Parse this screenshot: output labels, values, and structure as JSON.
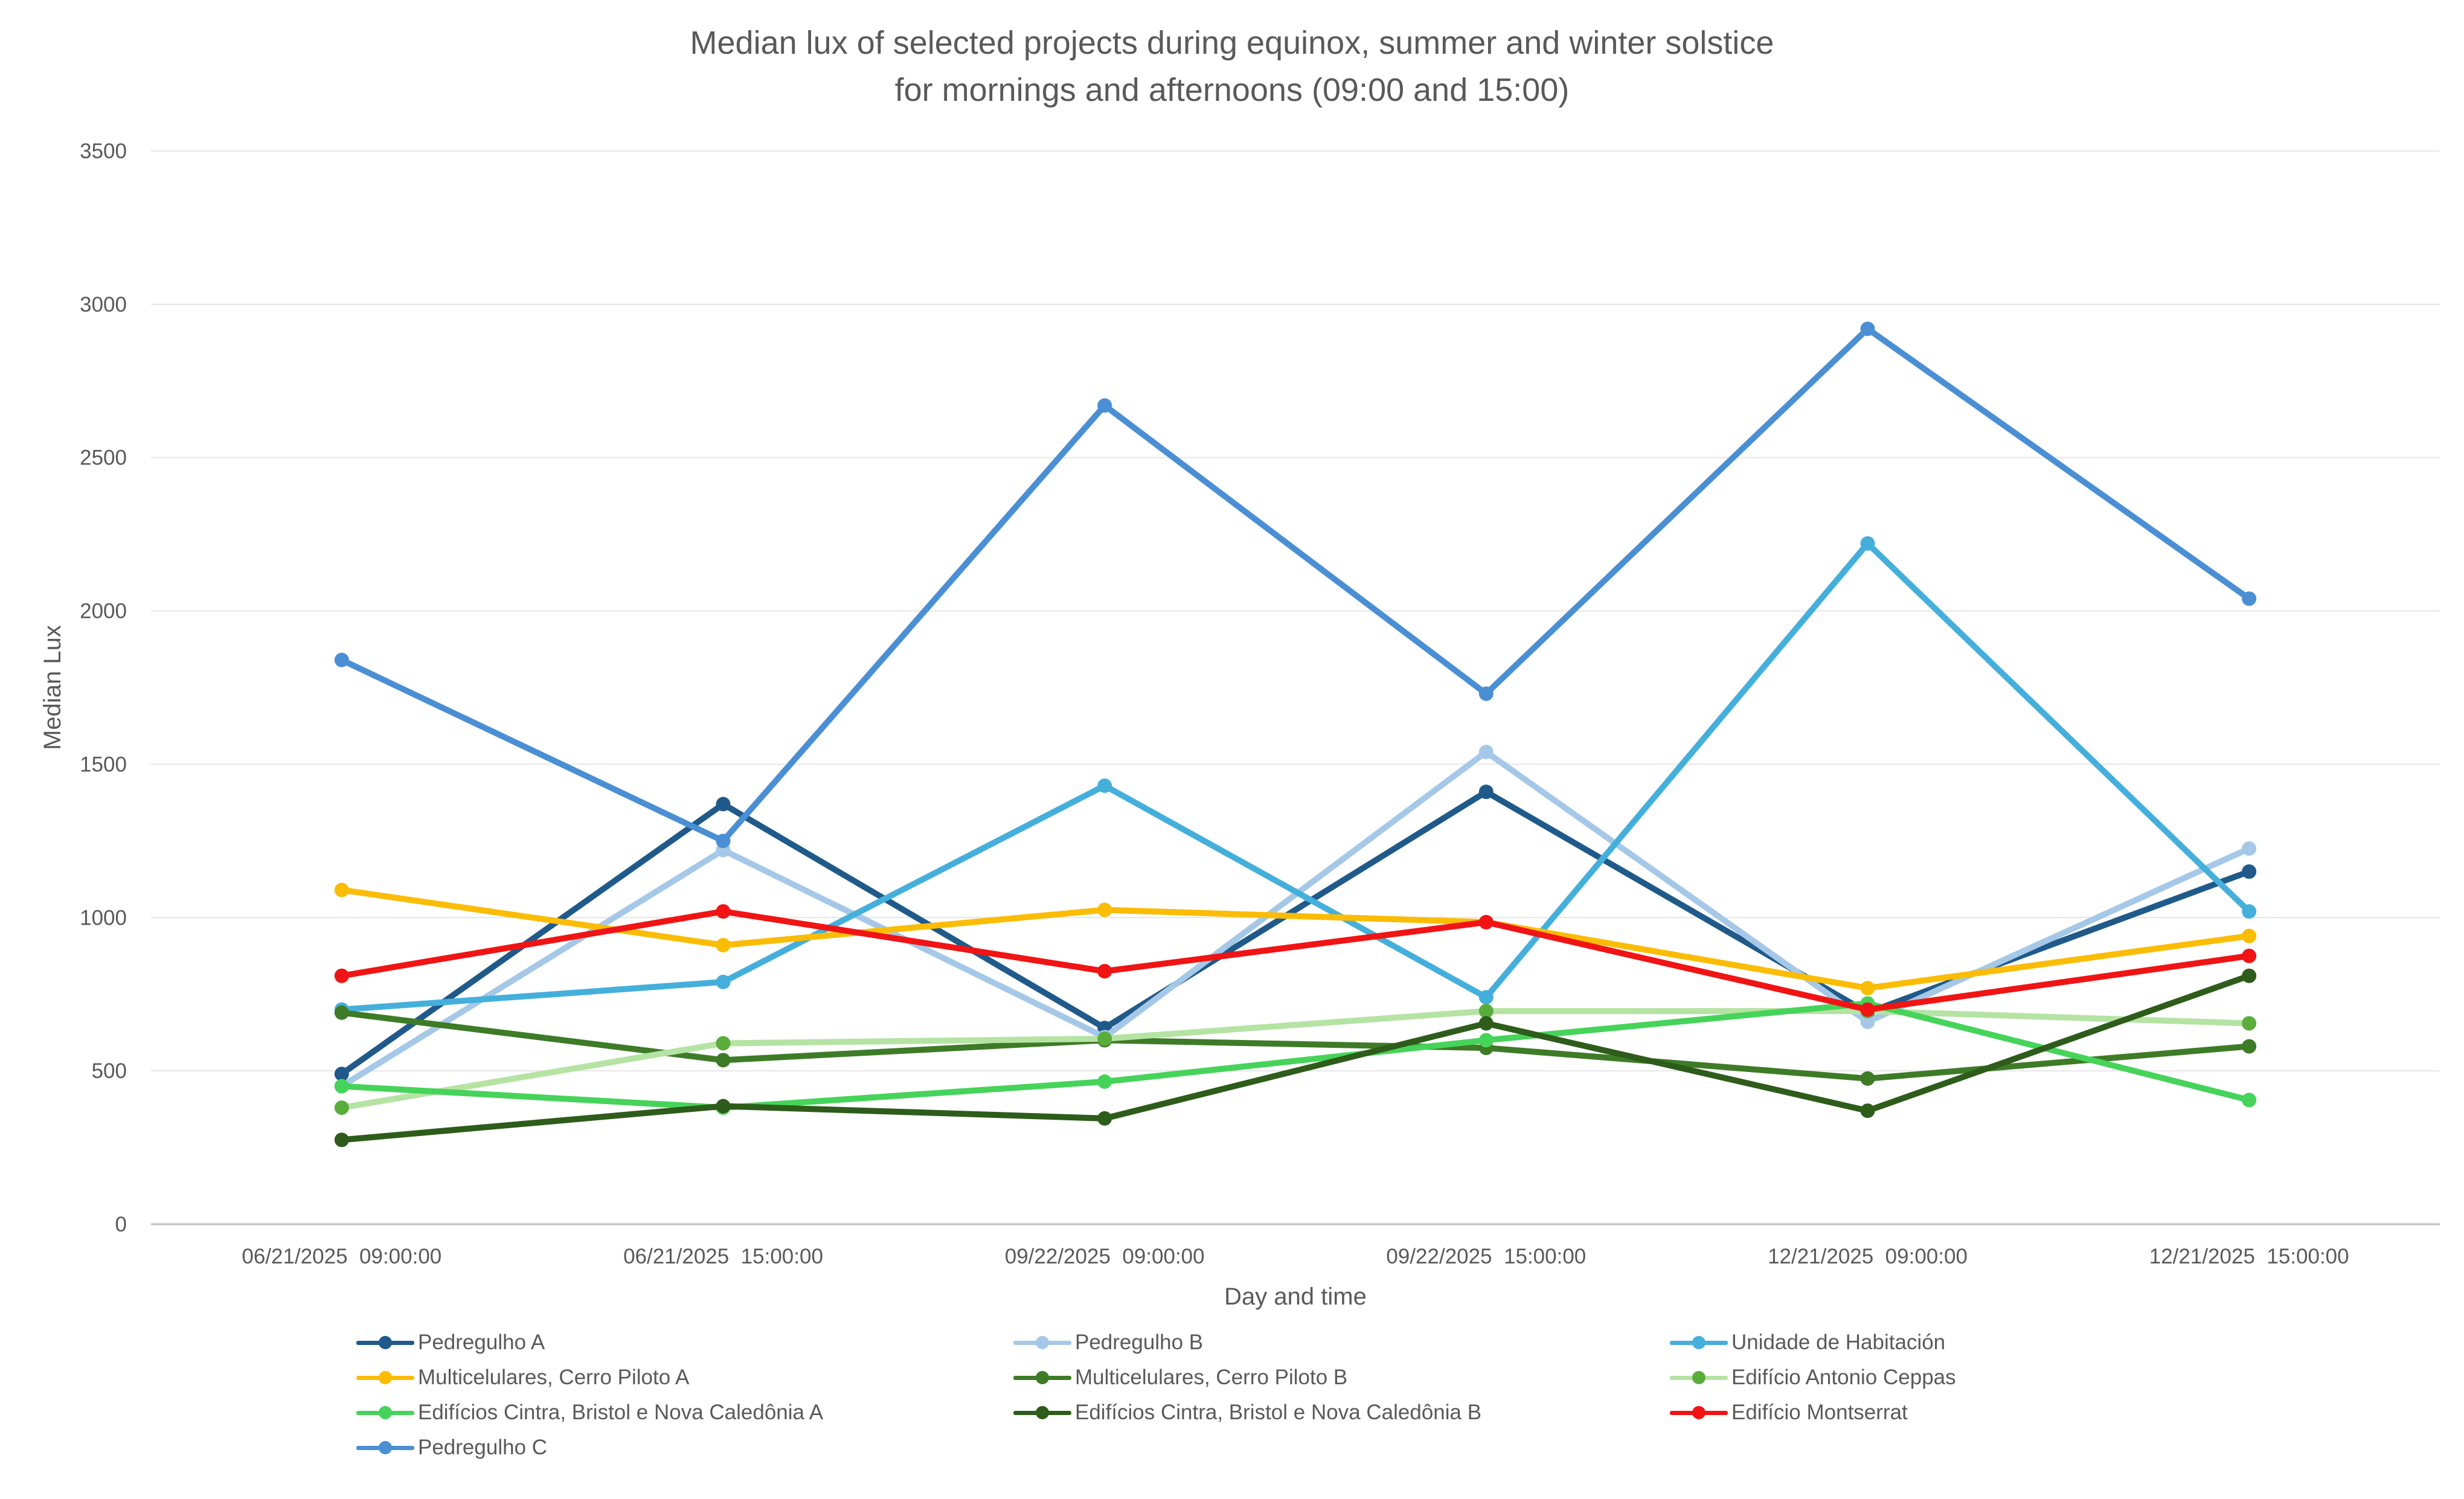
{
  "chart_data": {
    "type": "line",
    "title": "Median lux of selected projects during equinox, summer and winter solstice",
    "subtitle": "for mornings and afternoons (09:00 and 15:00)",
    "xlabel": "Day and time",
    "ylabel": "Median Lux",
    "ylim": [
      0,
      3500
    ],
    "yticks": [
      "0",
      "500",
      "1000",
      "1500",
      "2000",
      "2500",
      "3000",
      "3500"
    ],
    "categories": [
      "06/21/2025  09:00:00",
      "06/21/2025  15:00:00",
      "09/22/2025  09:00:00",
      "09/22/2025  15:00:00",
      "12/21/2025  09:00:00",
      "12/21/2025  15:00:00"
    ],
    "grid": "horizontal",
    "legend_position": "bottom",
    "series": [
      {
        "name": "Pedregulho A",
        "color": "#1f5a8a",
        "marker": "#1f5a8a",
        "values": [
          490,
          1370,
          640,
          1410,
          690,
          1150
        ]
      },
      {
        "name": "Pedregulho B",
        "color": "#a5c8e8",
        "marker": "#a5c8e8",
        "values": [
          450,
          1220,
          610,
          1540,
          660,
          1225
        ]
      },
      {
        "name": "Unidade de Habitación",
        "color": "#45afdc",
        "marker": "#45afdc",
        "values": [
          700,
          790,
          1430,
          740,
          2220,
          1020
        ]
      },
      {
        "name": "Multicelulares, Cerro Piloto A",
        "color": "#fbbc04",
        "marker": "#fbbc04",
        "values": [
          1090,
          910,
          1025,
          985,
          770,
          940
        ]
      },
      {
        "name": "Multicelulares, Cerro Piloto B",
        "color": "#3e7b27",
        "marker": "#3e7b27",
        "values": [
          690,
          535,
          600,
          575,
          475,
          580
        ]
      },
      {
        "name": "Edifício Antonio Ceppas",
        "color": "#b5e3a3",
        "marker": "#5aad3a",
        "values": [
          380,
          590,
          605,
          695,
          695,
          655
        ]
      },
      {
        "name": "Edifícios Cintra, Bristol e Nova Caledônia A",
        "color": "#46d35a",
        "marker": "#46d35a",
        "values": [
          450,
          380,
          465,
          600,
          720,
          405
        ]
      },
      {
        "name": "Edifícios Cintra, Bristol e Nova Caledônia B",
        "color": "#2e5c1a",
        "marker": "#2e5c1a",
        "values": [
          275,
          385,
          345,
          655,
          370,
          810
        ]
      },
      {
        "name": "Edifício Montserrat",
        "color": "#f01414",
        "marker": "#f01414",
        "values": [
          810,
          1020,
          825,
          985,
          700,
          875
        ]
      },
      {
        "name": "Pedregulho C",
        "color": "#4a8fd4",
        "marker": "#4a8fd4",
        "values": [
          1840,
          1250,
          2670,
          1730,
          2920,
          2040
        ]
      }
    ]
  }
}
